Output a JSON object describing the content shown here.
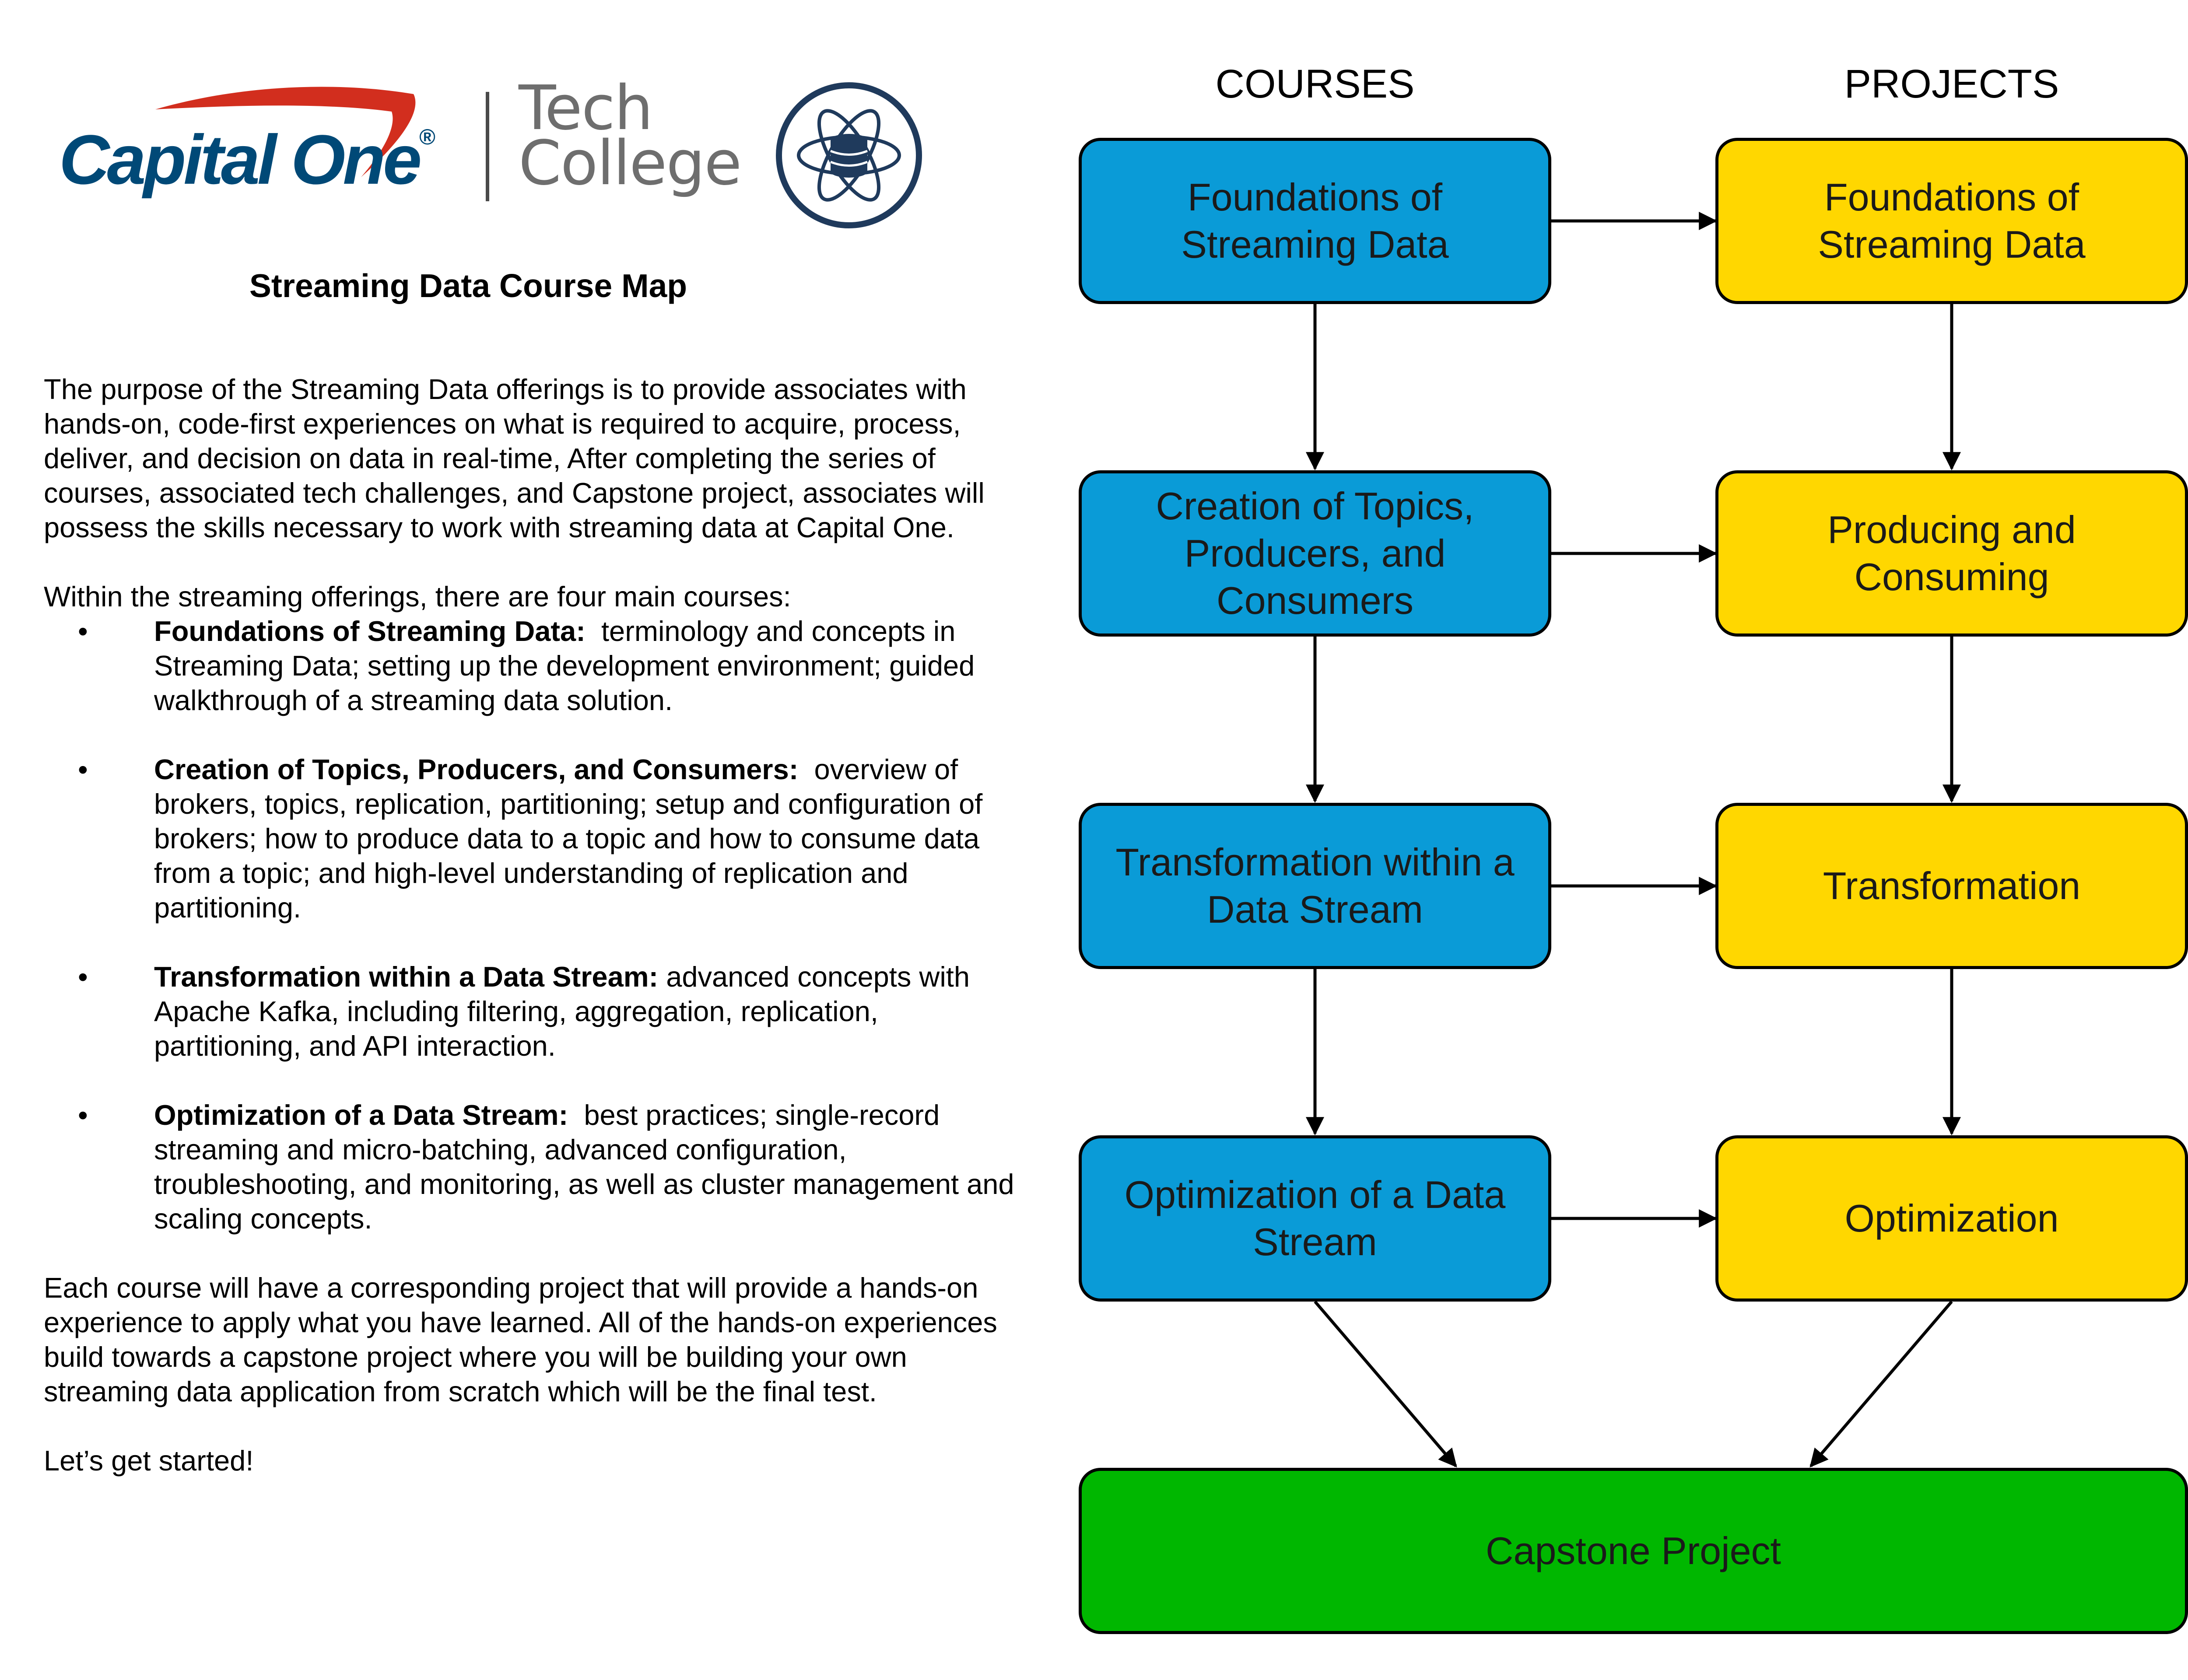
{
  "logo": {
    "brand_text": "Capital One",
    "brand_registered": "®",
    "tech_line1": "Tech",
    "tech_line2": "College",
    "emblem_icon": "database-atom-icon",
    "colors": {
      "capital_one_navy": "#004977",
      "capital_one_red": "#d22e1e",
      "tech_college_gray": "#6e6e6e"
    }
  },
  "document": {
    "title": "Streaming Data Course Map",
    "intro": "The purpose of the Streaming Data offerings is to provide associates with hands-on, code-first experiences on what is required to acquire, process, deliver, and decision on data in real-time,  After completing the series of courses, associated tech challenges, and Capstone project, associates will possess the skills necessary to work with streaming data at Capital One.",
    "courses_lead": "Within the streaming offerings, there are four main courses:",
    "bullet_glyph": "•",
    "bullets": [
      {
        "term": "Foundations of Streaming Data:",
        "text": "terminology and concepts in Streaming Data; setting up the development environment; guided walkthrough of a streaming data solution."
      },
      {
        "term": "Creation of Topics, Producers, and Consumers:",
        "text": "overview of brokers, topics, replication, partitioning; setup and configuration of brokers; how to produce data to a topic and how to consume data from a topic; and high-level understanding of replication and partitioning."
      },
      {
        "term": "Transformation within a Data Stream:",
        "text": "advanced concepts with Apache Kafka, including filtering, aggregation, replication, partitioning, and API interaction."
      },
      {
        "term": "Optimization of a Data Stream:",
        "text": "best practices; single-record streaming and micro-batching, advanced configuration, troubleshooting, and monitoring, as well as cluster management and scaling concepts."
      }
    ],
    "outro": "Each course will have a corresponding project that will provide a hands-on experience to apply what you have learned.  All of the hands-on experiences build towards a capstone project where you will be building your own streaming data application from scratch which will be the final test.",
    "closing": "Let’s get started!"
  },
  "diagram": {
    "headers": {
      "courses": "COURSES",
      "projects": "PROJECTS"
    },
    "courses": [
      {
        "id": "c1",
        "label": "Foundations of Streaming Data"
      },
      {
        "id": "c2",
        "label": "Creation of Topics, Producers, and Consumers"
      },
      {
        "id": "c3",
        "label": "Transformation within a Data Stream"
      },
      {
        "id": "c4",
        "label": "Optimization of a Data Stream"
      }
    ],
    "projects": [
      {
        "id": "p1",
        "label": "Foundations of Streaming Data"
      },
      {
        "id": "p2",
        "label": "Producing and Consuming"
      },
      {
        "id": "p3",
        "label": "Transformation"
      },
      {
        "id": "p4",
        "label": "Optimization"
      }
    ],
    "capstone": {
      "id": "cap",
      "label": "Capstone Project"
    },
    "edges": [
      [
        "c1",
        "p1"
      ],
      [
        "c2",
        "p2"
      ],
      [
        "c3",
        "p3"
      ],
      [
        "c4",
        "p4"
      ],
      [
        "c1",
        "c2"
      ],
      [
        "c2",
        "c3"
      ],
      [
        "c3",
        "c4"
      ],
      [
        "p1",
        "p2"
      ],
      [
        "p2",
        "p3"
      ],
      [
        "p3",
        "p4"
      ],
      [
        "c4",
        "cap"
      ],
      [
        "p4",
        "cap"
      ]
    ],
    "colors": {
      "course": "#0a9bd7",
      "project": "#ffd700",
      "capstone": "#00b700"
    }
  }
}
